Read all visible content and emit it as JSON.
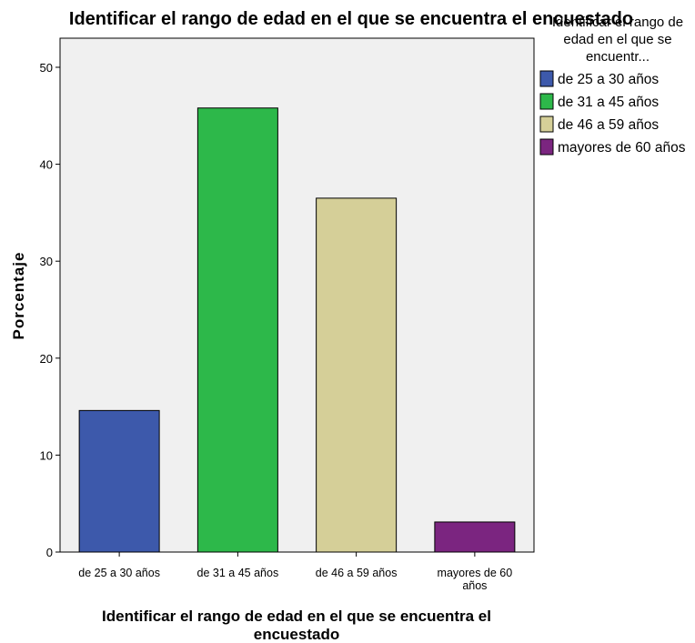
{
  "chart_data": {
    "type": "bar",
    "title": "Identificar el rango de edad en el que se encuentra el encuestado",
    "xlabel": [
      "Identificar el rango de edad en el que se encuentra el",
      "encuestado"
    ],
    "ylabel": "Porcentaje",
    "categories": [
      [
        "de 25 a 30 años"
      ],
      [
        "de 31 a 45 años"
      ],
      [
        "de 46 a 59 años"
      ],
      [
        "mayores de 60",
        "años"
      ]
    ],
    "values": [
      14.6,
      45.8,
      36.5,
      3.1
    ],
    "colors": [
      "#3d59ab",
      "#2db84a",
      "#d5cf98",
      "#7b2580"
    ],
    "ylim": [
      0,
      53
    ],
    "yticks": [
      0,
      10,
      20,
      30,
      40,
      50
    ],
    "grid": false,
    "plot_background": "#f0f0f0",
    "legend": {
      "placement": "right",
      "title": [
        "Identificar el rango de",
        "edad en el que se",
        "encuentr..."
      ],
      "entries": [
        "de 25 a 30 años",
        "de 31 a 45 años",
        "de 46 a 59 años",
        "mayores de 60 años"
      ]
    }
  }
}
